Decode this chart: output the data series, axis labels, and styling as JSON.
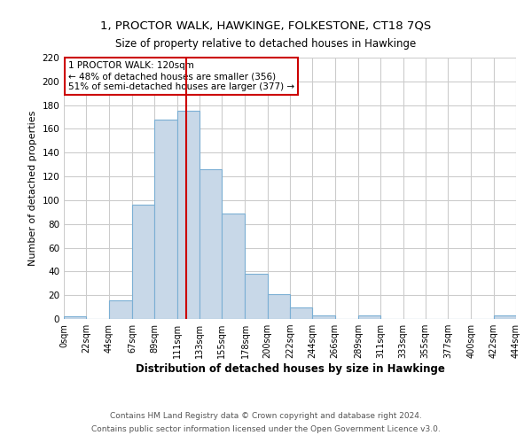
{
  "title1": "1, PROCTOR WALK, HAWKINGE, FOLKESTONE, CT18 7QS",
  "title2": "Size of property relative to detached houses in Hawkinge",
  "xlabel": "Distribution of detached houses by size in Hawkinge",
  "ylabel": "Number of detached properties",
  "bar_left_edges": [
    0,
    22,
    44,
    67,
    89,
    111,
    133,
    155,
    178,
    200,
    222,
    244,
    266,
    289,
    311,
    333,
    355,
    377,
    400,
    422
  ],
  "bar_heights": [
    2,
    0,
    16,
    96,
    168,
    175,
    126,
    89,
    38,
    21,
    10,
    3,
    0,
    3,
    0,
    0,
    0,
    0,
    0,
    3
  ],
  "bar_widths": [
    22,
    22,
    23,
    22,
    22,
    22,
    22,
    23,
    22,
    22,
    22,
    22,
    23,
    22,
    22,
    22,
    22,
    23,
    22,
    22
  ],
  "tick_labels": [
    "0sqm",
    "22sqm",
    "44sqm",
    "67sqm",
    "89sqm",
    "111sqm",
    "133sqm",
    "155sqm",
    "178sqm",
    "200sqm",
    "222sqm",
    "244sqm",
    "266sqm",
    "289sqm",
    "311sqm",
    "333sqm",
    "355sqm",
    "377sqm",
    "400sqm",
    "422sqm",
    "444sqm"
  ],
  "tick_positions": [
    0,
    22,
    44,
    67,
    89,
    111,
    133,
    155,
    178,
    200,
    222,
    244,
    266,
    289,
    311,
    333,
    355,
    377,
    400,
    422,
    444
  ],
  "bar_color": "#c8d8e8",
  "bar_edge_color": "#7bafd4",
  "property_line_x": 120,
  "property_line_color": "#cc0000",
  "ylim": [
    0,
    220
  ],
  "yticks": [
    0,
    20,
    40,
    60,
    80,
    100,
    120,
    140,
    160,
    180,
    200,
    220
  ],
  "annotation_title": "1 PROCTOR WALK: 120sqm",
  "annotation_line1": "← 48% of detached houses are smaller (356)",
  "annotation_line2": "51% of semi-detached houses are larger (377) →",
  "annotation_box_color": "#ffffff",
  "annotation_box_edge": "#cc0000",
  "footer1": "Contains HM Land Registry data © Crown copyright and database right 2024.",
  "footer2": "Contains public sector information licensed under the Open Government Licence v3.0.",
  "background_color": "#ffffff",
  "grid_color": "#cccccc"
}
